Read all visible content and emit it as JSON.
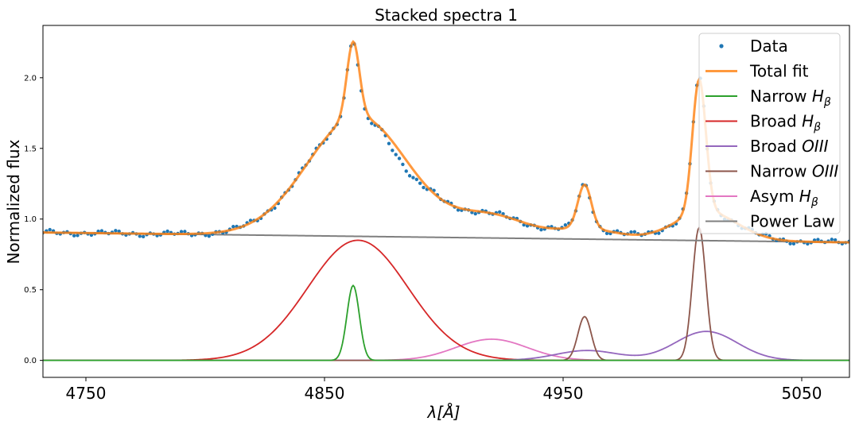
{
  "chart_data": {
    "type": "line",
    "title": "Stacked spectra 1",
    "xlabel": "λ[Å]",
    "ylabel": "Normalized flux",
    "xlim": [
      4732,
      5070
    ],
    "ylim": [
      -0.12,
      2.37
    ],
    "xticks": [
      4750,
      4850,
      4950,
      5050
    ],
    "yticks": [
      0.0,
      0.5,
      1.0,
      1.5,
      2.0
    ],
    "xtick_labels": [
      "4750",
      "4850",
      "4950",
      "5050"
    ],
    "ytick_labels": [
      "0.0",
      "0.5",
      "1.0",
      "1.5",
      "2.0"
    ],
    "legend_position": "top-right",
    "grid": false,
    "components": [
      {
        "name": "Narrow H",
        "sub": "β",
        "kind": "gauss",
        "color": "#2ca02c",
        "amp": 0.53,
        "center": 4862,
        "sigma": 2.6
      },
      {
        "name": "Broad H",
        "sub": "β",
        "kind": "gauss",
        "color": "#d62728",
        "amp": 0.85,
        "center": 4864,
        "sigma": 21
      },
      {
        "name": "Broad OIII",
        "sub": "",
        "kind": "double_gauss",
        "color": "#9467bd",
        "amp1": 0.07,
        "center1": 4960,
        "sigma1": 13,
        "amp2": 0.205,
        "center2": 5010,
        "sigma2": 13
      },
      {
        "name": "Narrow OIII",
        "sub": "",
        "kind": "double_gauss",
        "color": "#8c564b",
        "amp1": 0.31,
        "center1": 4959,
        "sigma1": 2.8,
        "amp2": 0.94,
        "center2": 5007,
        "sigma2": 2.8
      },
      {
        "name": "Asym H",
        "sub": "β",
        "kind": "gauss",
        "color": "#e377c2",
        "amp": 0.15,
        "center": 4920,
        "sigma": 15
      },
      {
        "name": "Power Law",
        "sub": "",
        "kind": "linear",
        "color": "#7f7f7f",
        "at_xmin": 0.905,
        "at_xmax": 0.835
      }
    ],
    "series": [
      {
        "name": "Data",
        "kind": "scatter",
        "color": "#1f77b4",
        "x_start": 4732,
        "x_end": 5070,
        "step": 1.45
      },
      {
        "name": "Total fit",
        "kind": "line",
        "color": "#ff7f0e"
      }
    ],
    "legend_order": [
      "Data",
      "Total fit",
      "Narrow H",
      "Broad H",
      "Broad OIII",
      "Narrow OIII",
      "Asym H",
      "Power Law"
    ]
  }
}
